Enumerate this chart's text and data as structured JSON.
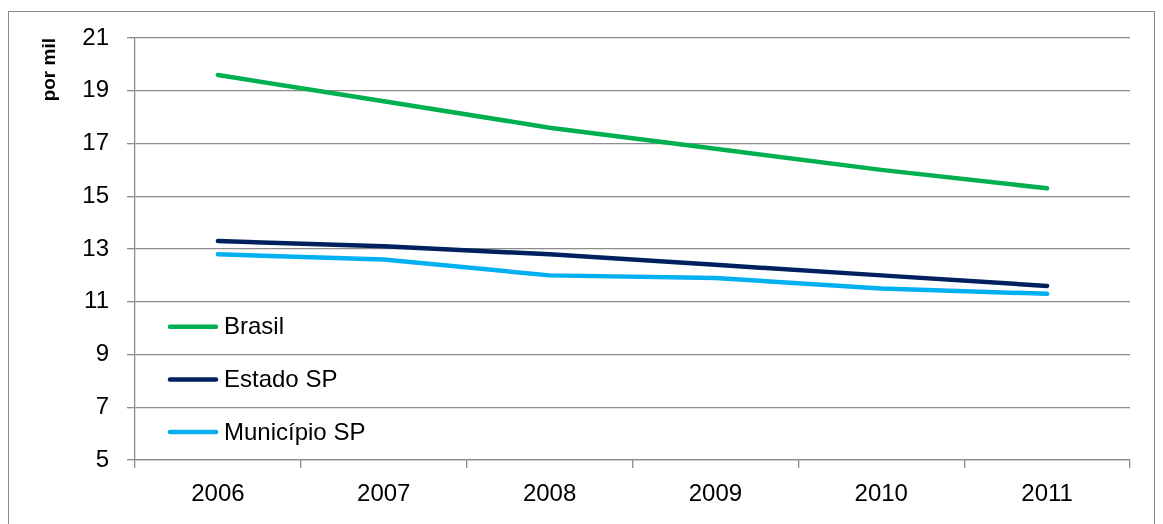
{
  "chart_data": {
    "type": "line",
    "ylabel": "por mil",
    "categories": [
      "2006",
      "2007",
      "2008",
      "2009",
      "2010",
      "2011"
    ],
    "series": [
      {
        "name": "Brasil",
        "color": "#00b050",
        "values": [
          19.6,
          18.6,
          17.6,
          16.8,
          16.0,
          15.3
        ]
      },
      {
        "name": "Estado SP",
        "color": "#002060",
        "values": [
          13.3,
          13.1,
          12.8,
          12.4,
          12.0,
          11.6
        ]
      },
      {
        "name": "Município SP",
        "color": "#00b0f0",
        "values": [
          12.8,
          12.6,
          12.0,
          11.9,
          11.5,
          11.3
        ]
      }
    ],
    "ylim": [
      5,
      21
    ],
    "yticks": [
      5,
      7,
      9,
      11,
      13,
      15,
      17,
      19,
      21
    ],
    "grid": "y",
    "legend": "bottom left",
    "marker": "none",
    "line_style": "solid"
  }
}
